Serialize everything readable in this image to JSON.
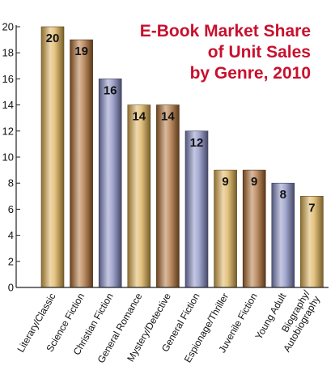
{
  "colors": {
    "title": "#c8102e",
    "axis": "#222222",
    "gold": "#d9a94a",
    "bronze": "#a8652a",
    "blue": "#7f85bd"
  },
  "chart_data": {
    "type": "bar",
    "title_lines": [
      "E-Book Market Share",
      "of Unit Sales",
      "by Genre, 2010"
    ],
    "categories": [
      "Literary/Classic",
      "Science Fiction",
      "Christian Fiction",
      "General Romance",
      "Mystery/Detective",
      "General Fiction",
      "Espionage/Thriller",
      "Juvenile Fiction",
      "Young Adult",
      "Biography/ Autobiography"
    ],
    "category_lines": [
      [
        "Literary/Classic"
      ],
      [
        "Science Fiction"
      ],
      [
        "Christian Fiction"
      ],
      [
        "General Romance"
      ],
      [
        "Mystery/Detective"
      ],
      [
        "General Fiction"
      ],
      [
        "Espionage/Thriller"
      ],
      [
        "Juvenile Fiction"
      ],
      [
        "Young Adult"
      ],
      [
        "Biography/",
        "Autobiography"
      ]
    ],
    "values": [
      20,
      19,
      16,
      14,
      14,
      12,
      9,
      9,
      8,
      7
    ],
    "value_labels": [
      "20",
      "19",
      "16",
      "14",
      "14",
      "12",
      "9",
      "9",
      "8",
      "7"
    ],
    "bar_colors": [
      "gold",
      "bronze",
      "blue",
      "gold",
      "bronze",
      "blue",
      "gold",
      "bronze",
      "blue",
      "gold"
    ],
    "yticks": [
      "0",
      "2",
      "4",
      "6",
      "8",
      "10",
      "12",
      "14",
      "16",
      "18",
      "20"
    ],
    "ylim": [
      0,
      20
    ],
    "xlabel": "",
    "ylabel": "",
    "grid": false,
    "legend": "none"
  }
}
